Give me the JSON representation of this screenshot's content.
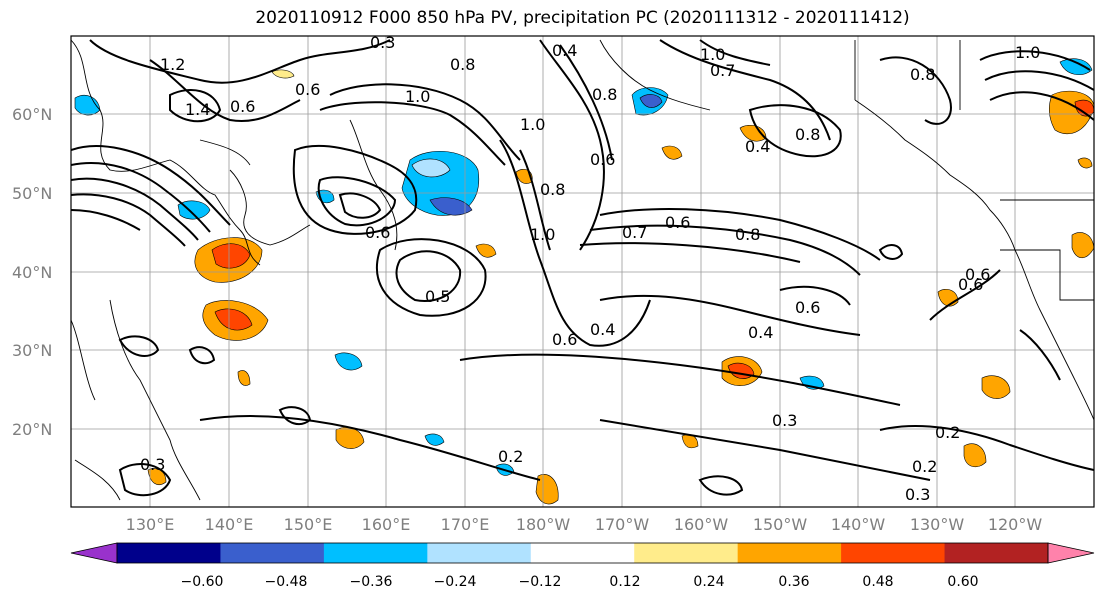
{
  "title": "2020110912 F000 850 hPa PV, precipitation PC (2020111312 - 2020111412)",
  "lat_labels": [
    "60°N",
    "50°N",
    "40°N",
    "30°N",
    "20°N"
  ],
  "lon_labels": [
    "130°E",
    "140°E",
    "150°E",
    "160°E",
    "170°E",
    "180°W",
    "170°W",
    "160°W",
    "150°W",
    "140°W",
    "130°W",
    "120°W"
  ],
  "contour_labels": [
    "0.3",
    "0.4",
    "1.0",
    "1.0",
    "0.8",
    "1.2",
    "0.8",
    "1.4",
    "0.6",
    "1.0",
    "1.0",
    "0.6",
    "0.8",
    "0.8",
    "0.7",
    "0.6",
    "0.8",
    "0.4",
    "0.7",
    "0.6",
    "0.8",
    "1.0",
    "0.5",
    "0.4",
    "0.6",
    "0.6",
    "0.6",
    "0.4",
    "0.3",
    "0.2",
    "0.2",
    "0.3",
    "0.2",
    "0.3",
    "0.6",
    "0.6"
  ],
  "colorbar": {
    "ticks": [
      "−0.60",
      "−0.48",
      "−0.36",
      "−0.24",
      "−0.12",
      "0.12",
      "0.24",
      "0.36",
      "0.48",
      "0.60"
    ],
    "colors": [
      "#9932cc",
      "#00008b",
      "#3a5fcd",
      "#00bfff",
      "#b0e2ff",
      "#ffffff",
      "#ffec8b",
      "#ffa500",
      "#ff4500",
      "#b22222",
      "#ff82ab"
    ]
  }
}
